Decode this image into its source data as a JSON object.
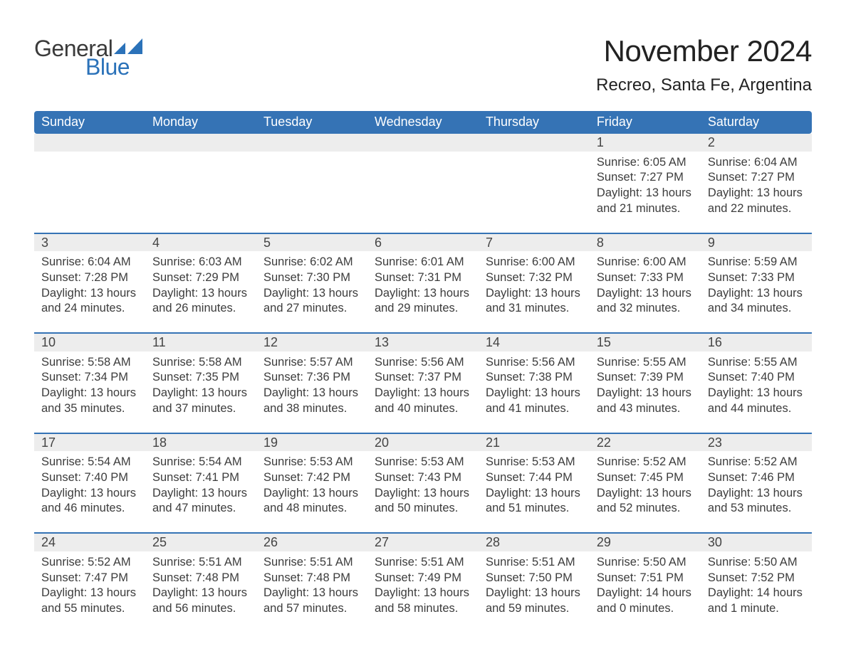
{
  "brand": {
    "word1": "General",
    "word2": "Blue",
    "icon_color": "#2b72b9"
  },
  "title": "November 2024",
  "location": "Recreo, Santa Fe, Argentina",
  "colors": {
    "header_bg": "#3573b5",
    "header_text": "#ffffff",
    "daynum_bg": "#ededed",
    "rule": "#3573b5",
    "text": "#3c3c3c",
    "page_bg": "#ffffff"
  },
  "typography": {
    "title_fontsize": 42,
    "location_fontsize": 24,
    "weekday_fontsize": 18,
    "daynum_fontsize": 18,
    "body_fontsize": 16.5,
    "font_family": "Arial"
  },
  "layout": {
    "columns": 7,
    "rows": 5,
    "start_weekday_index": 5
  },
  "weekdays": [
    "Sunday",
    "Monday",
    "Tuesday",
    "Wednesday",
    "Thursday",
    "Friday",
    "Saturday"
  ],
  "days": [
    {
      "n": 1,
      "sunrise": "6:05 AM",
      "sunset": "7:27 PM",
      "daylight": "13 hours and 21 minutes."
    },
    {
      "n": 2,
      "sunrise": "6:04 AM",
      "sunset": "7:27 PM",
      "daylight": "13 hours and 22 minutes."
    },
    {
      "n": 3,
      "sunrise": "6:04 AM",
      "sunset": "7:28 PM",
      "daylight": "13 hours and 24 minutes."
    },
    {
      "n": 4,
      "sunrise": "6:03 AM",
      "sunset": "7:29 PM",
      "daylight": "13 hours and 26 minutes."
    },
    {
      "n": 5,
      "sunrise": "6:02 AM",
      "sunset": "7:30 PM",
      "daylight": "13 hours and 27 minutes."
    },
    {
      "n": 6,
      "sunrise": "6:01 AM",
      "sunset": "7:31 PM",
      "daylight": "13 hours and 29 minutes."
    },
    {
      "n": 7,
      "sunrise": "6:00 AM",
      "sunset": "7:32 PM",
      "daylight": "13 hours and 31 minutes."
    },
    {
      "n": 8,
      "sunrise": "6:00 AM",
      "sunset": "7:33 PM",
      "daylight": "13 hours and 32 minutes."
    },
    {
      "n": 9,
      "sunrise": "5:59 AM",
      "sunset": "7:33 PM",
      "daylight": "13 hours and 34 minutes."
    },
    {
      "n": 10,
      "sunrise": "5:58 AM",
      "sunset": "7:34 PM",
      "daylight": "13 hours and 35 minutes."
    },
    {
      "n": 11,
      "sunrise": "5:58 AM",
      "sunset": "7:35 PM",
      "daylight": "13 hours and 37 minutes."
    },
    {
      "n": 12,
      "sunrise": "5:57 AM",
      "sunset": "7:36 PM",
      "daylight": "13 hours and 38 minutes."
    },
    {
      "n": 13,
      "sunrise": "5:56 AM",
      "sunset": "7:37 PM",
      "daylight": "13 hours and 40 minutes."
    },
    {
      "n": 14,
      "sunrise": "5:56 AM",
      "sunset": "7:38 PM",
      "daylight": "13 hours and 41 minutes."
    },
    {
      "n": 15,
      "sunrise": "5:55 AM",
      "sunset": "7:39 PM",
      "daylight": "13 hours and 43 minutes."
    },
    {
      "n": 16,
      "sunrise": "5:55 AM",
      "sunset": "7:40 PM",
      "daylight": "13 hours and 44 minutes."
    },
    {
      "n": 17,
      "sunrise": "5:54 AM",
      "sunset": "7:40 PM",
      "daylight": "13 hours and 46 minutes."
    },
    {
      "n": 18,
      "sunrise": "5:54 AM",
      "sunset": "7:41 PM",
      "daylight": "13 hours and 47 minutes."
    },
    {
      "n": 19,
      "sunrise": "5:53 AM",
      "sunset": "7:42 PM",
      "daylight": "13 hours and 48 minutes."
    },
    {
      "n": 20,
      "sunrise": "5:53 AM",
      "sunset": "7:43 PM",
      "daylight": "13 hours and 50 minutes."
    },
    {
      "n": 21,
      "sunrise": "5:53 AM",
      "sunset": "7:44 PM",
      "daylight": "13 hours and 51 minutes."
    },
    {
      "n": 22,
      "sunrise": "5:52 AM",
      "sunset": "7:45 PM",
      "daylight": "13 hours and 52 minutes."
    },
    {
      "n": 23,
      "sunrise": "5:52 AM",
      "sunset": "7:46 PM",
      "daylight": "13 hours and 53 minutes."
    },
    {
      "n": 24,
      "sunrise": "5:52 AM",
      "sunset": "7:47 PM",
      "daylight": "13 hours and 55 minutes."
    },
    {
      "n": 25,
      "sunrise": "5:51 AM",
      "sunset": "7:48 PM",
      "daylight": "13 hours and 56 minutes."
    },
    {
      "n": 26,
      "sunrise": "5:51 AM",
      "sunset": "7:48 PM",
      "daylight": "13 hours and 57 minutes."
    },
    {
      "n": 27,
      "sunrise": "5:51 AM",
      "sunset": "7:49 PM",
      "daylight": "13 hours and 58 minutes."
    },
    {
      "n": 28,
      "sunrise": "5:51 AM",
      "sunset": "7:50 PM",
      "daylight": "13 hours and 59 minutes."
    },
    {
      "n": 29,
      "sunrise": "5:50 AM",
      "sunset": "7:51 PM",
      "daylight": "14 hours and 0 minutes."
    },
    {
      "n": 30,
      "sunrise": "5:50 AM",
      "sunset": "7:52 PM",
      "daylight": "14 hours and 1 minute."
    }
  ],
  "labels": {
    "sunrise": "Sunrise:",
    "sunset": "Sunset:",
    "daylight": "Daylight:"
  }
}
